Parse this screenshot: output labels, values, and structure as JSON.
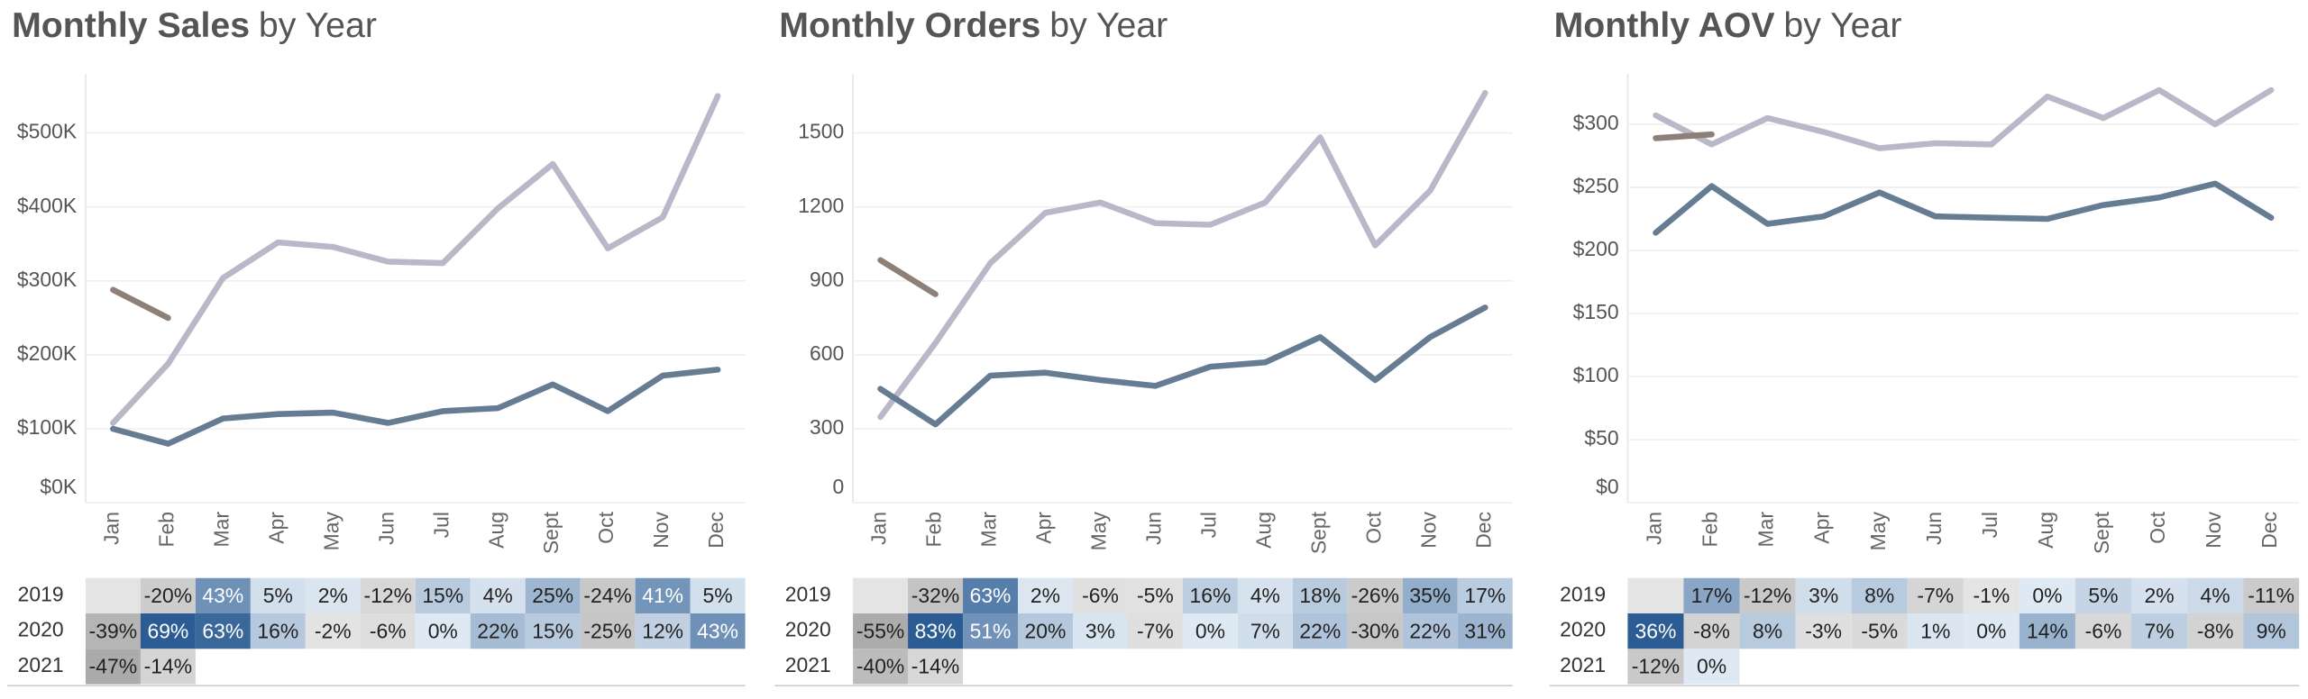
{
  "chart_data": [
    {
      "type": "line",
      "title": "Monthly Sales",
      "title_suffix": "by Year",
      "categories": [
        "Jan",
        "Feb",
        "Mar",
        "Apr",
        "May",
        "Jun",
        "Jul",
        "Aug",
        "Sept",
        "Oct",
        "Nov",
        "Dec"
      ],
      "ylim": [
        0,
        580
      ],
      "yticks": [
        {
          "value": 0,
          "label": "$0K"
        },
        {
          "value": 100,
          "label": "$100K"
        },
        {
          "value": 200,
          "label": "$200K"
        },
        {
          "value": 300,
          "label": "$300K"
        },
        {
          "value": 400,
          "label": "$400K"
        },
        {
          "value": 500,
          "label": "$500K"
        }
      ],
      "grid": true,
      "series": [
        {
          "name": "2019",
          "color": "#b9b8c8",
          "values": [
            108,
            188,
            304,
            352,
            346,
            326,
            324,
            398,
            458,
            344,
            386,
            550
          ]
        },
        {
          "name": "2020",
          "color": "#657c93",
          "values": [
            100,
            80,
            114,
            120,
            122,
            108,
            124,
            128,
            160,
            124,
            172,
            180
          ]
        },
        {
          "name": "2021",
          "color": "#8c8078",
          "values": [
            288,
            250,
            null,
            null,
            null,
            null,
            null,
            null,
            null,
            null,
            null,
            null
          ]
        }
      ],
      "table": {
        "positive_color": "#2b5c93",
        "negative_color": "#8f8f8f",
        "rows": [
          {
            "label": "2019",
            "values": [
              null,
              -20,
              43,
              5,
              2,
              -12,
              15,
              4,
              25,
              -24,
              41,
              5
            ],
            "value_labels": [
              null,
              "-20%",
              "43%",
              "5%",
              "2%",
              "-12%",
              "15%",
              "4%",
              "25%",
              "-24%",
              "41%",
              "5%"
            ]
          },
          {
            "label": "2020",
            "values": [
              -39,
              69,
              63,
              16,
              -2,
              -6,
              0,
              22,
              15,
              -25,
              12,
              43
            ],
            "value_labels": [
              "-39%",
              "69%",
              "63%",
              "16%",
              "-2%",
              "-6%",
              "0%",
              "22%",
              "15%",
              "-25%",
              "12%",
              "43%"
            ]
          },
          {
            "label": "2021",
            "values": [
              -47,
              -14
            ],
            "value_labels": [
              "-47%",
              "-14%"
            ]
          }
        ]
      }
    },
    {
      "type": "line",
      "title": "Monthly Orders",
      "title_suffix": "by Year",
      "categories": [
        "Jan",
        "Feb",
        "Mar",
        "Apr",
        "May",
        "Jun",
        "Jul",
        "Aug",
        "Sept",
        "Oct",
        "Nov",
        "Dec"
      ],
      "ylim": [
        0,
        1740
      ],
      "yticks": [
        0,
        300,
        600,
        900,
        1200,
        1500
      ],
      "grid": true,
      "series": [
        {
          "name": "2019",
          "color": "#b9b8c8",
          "values": [
            348,
            648,
            972,
            1176,
            1218,
            1134,
            1128,
            1218,
            1482,
            1044,
            1266,
            1662
          ]
        },
        {
          "name": "2020",
          "color": "#657c93",
          "values": [
            462,
            318,
            516,
            528,
            498,
            474,
            552,
            570,
            672,
            498,
            672,
            792
          ]
        },
        {
          "name": "2021",
          "color": "#8c8078",
          "values": [
            984,
            846,
            null,
            null,
            null,
            null,
            null,
            null,
            null,
            null,
            null,
            null
          ]
        }
      ],
      "table": {
        "positive_color": "#2b5c93",
        "negative_color": "#8f8f8f",
        "rows": [
          {
            "label": "2019",
            "values": [
              null,
              -32,
              63,
              2,
              -6,
              -5,
              16,
              4,
              18,
              -26,
              35,
              17
            ],
            "value_labels": [
              null,
              "-32%",
              "63%",
              "2%",
              "-6%",
              "-5%",
              "16%",
              "4%",
              "18%",
              "-26%",
              "35%",
              "17%"
            ]
          },
          {
            "label": "2020",
            "values": [
              -55,
              83,
              51,
              20,
              3,
              -7,
              0,
              7,
              22,
              -30,
              22,
              31
            ],
            "value_labels": [
              "-55%",
              "83%",
              "51%",
              "20%",
              "3%",
              "-7%",
              "0%",
              "7%",
              "22%",
              "-30%",
              "22%",
              "31%"
            ]
          },
          {
            "label": "2021",
            "values": [
              -40,
              -14
            ],
            "value_labels": [
              "-40%",
              "-14%"
            ]
          }
        ]
      }
    },
    {
      "type": "line",
      "title": "Monthly AOV",
      "title_suffix": "by Year",
      "categories": [
        "Jan",
        "Feb",
        "Mar",
        "Apr",
        "May",
        "Jun",
        "Jul",
        "Aug",
        "Sept",
        "Oct",
        "Nov",
        "Dec"
      ],
      "ylim": [
        0,
        340
      ],
      "yticks": [
        {
          "value": 0,
          "label": "$0"
        },
        {
          "value": 50,
          "label": "$50"
        },
        {
          "value": 100,
          "label": "$100"
        },
        {
          "value": 150,
          "label": "$150"
        },
        {
          "value": 200,
          "label": "$200"
        },
        {
          "value": 250,
          "label": "$250"
        },
        {
          "value": 300,
          "label": "$300"
        }
      ],
      "grid": true,
      "series": [
        {
          "name": "2019",
          "color": "#b9b8c8",
          "values": [
            307,
            284,
            305,
            294,
            281,
            285,
            284,
            322,
            305,
            327,
            300,
            327
          ]
        },
        {
          "name": "2020",
          "color": "#657c93",
          "values": [
            214,
            251,
            221,
            227,
            246,
            227,
            226,
            225,
            236,
            242,
            253,
            226
          ]
        },
        {
          "name": "2021",
          "color": "#8c8078",
          "values": [
            289,
            292,
            null,
            null,
            null,
            null,
            null,
            null,
            null,
            null,
            null,
            null
          ]
        }
      ],
      "table": {
        "positive_color": "#2b5c93",
        "negative_color": "#8f8f8f",
        "rows": [
          {
            "label": "2019",
            "values": [
              null,
              17,
              -12,
              3,
              8,
              -7,
              -1,
              0,
              5,
              2,
              4,
              -11
            ],
            "value_labels": [
              null,
              "17%",
              "-12%",
              "3%",
              "8%",
              "-7%",
              "-1%",
              "0%",
              "5%",
              "2%",
              "4%",
              "-11%"
            ]
          },
          {
            "label": "2020",
            "values": [
              36,
              -8,
              8,
              -3,
              -5,
              1,
              0,
              14,
              -6,
              7,
              -8,
              9
            ],
            "value_labels": [
              "36%",
              "-8%",
              "8%",
              "-3%",
              "-5%",
              "1%",
              "0%",
              "14%",
              "-6%",
              "7%",
              "-8%",
              "9%"
            ]
          },
          {
            "label": "2021",
            "values": [
              -12,
              0
            ],
            "value_labels": [
              "-12%",
              "0%"
            ]
          }
        ]
      }
    }
  ]
}
